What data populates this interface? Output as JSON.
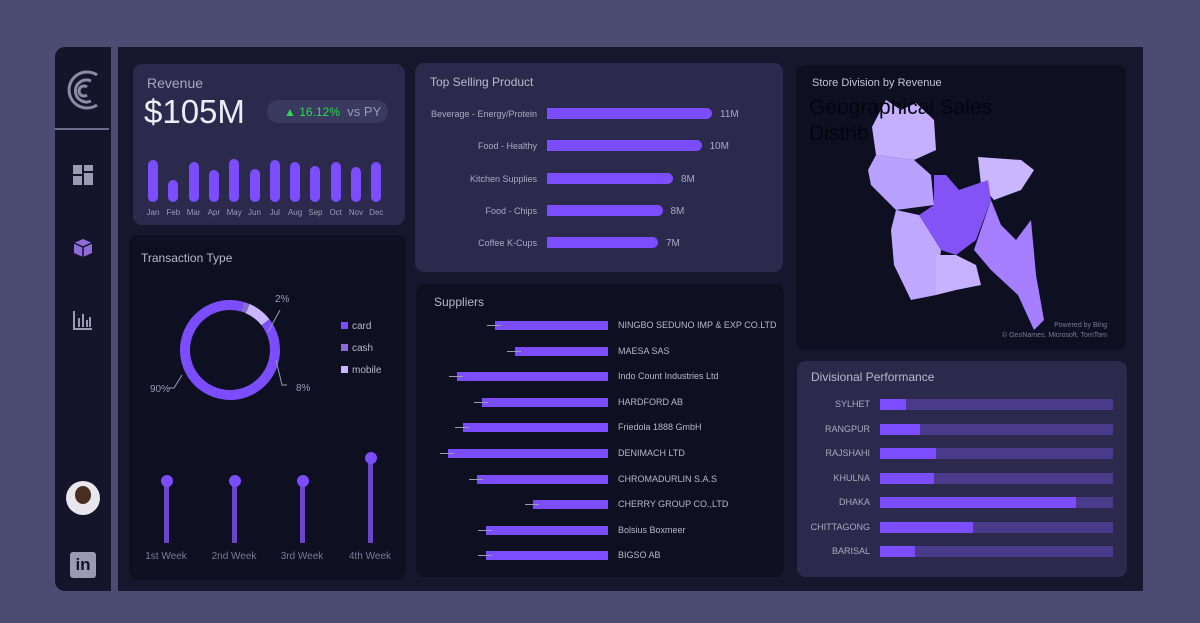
{
  "colors": {
    "accent": "#7c4dff",
    "positive": "#2bd94a",
    "card": "#7c4dff",
    "cash": "#8a6ad6",
    "mobile": "#c9b6ff"
  },
  "sidebar": {
    "items": [
      {
        "icon": "logo-icon"
      },
      {
        "icon": "dashboard-grid-icon"
      },
      {
        "icon": "box-icon"
      },
      {
        "icon": "bar-chart-icon"
      },
      {
        "icon": "avatar"
      },
      {
        "icon": "linkedin-icon"
      }
    ],
    "linkedin_text": "in"
  },
  "revenue": {
    "title": "Revenue",
    "value": "$105M",
    "change": "16.12%",
    "vs": "vs PY",
    "months": [
      "Jan",
      "Feb",
      "Mar",
      "Apr",
      "May",
      "Jun",
      "Jul",
      "Aug",
      "Sep",
      "Oct",
      "Nov",
      "Dec"
    ],
    "values": [
      42,
      22,
      40,
      32,
      43,
      33,
      42,
      40,
      36,
      40,
      35,
      40
    ]
  },
  "top_selling": {
    "title": "Top  Selling Product",
    "items": [
      {
        "name": "Beverage - Energy/Protein",
        "value": 11,
        "label": "11M"
      },
      {
        "name": "Food - Healthy",
        "value": 10.3,
        "label": "10M"
      },
      {
        "name": "Kitchen Supplies",
        "value": 8.4,
        "label": "8M"
      },
      {
        "name": "Food - Chips",
        "value": 7.7,
        "label": "8M"
      },
      {
        "name": "Coffee K-Cups",
        "value": 7.4,
        "label": "7M"
      }
    ]
  },
  "transaction": {
    "title": "Transaction Type",
    "slices": [
      {
        "name": "card",
        "pct": 90,
        "label": "90%"
      },
      {
        "name": "cash",
        "pct": 2,
        "label": "2%"
      },
      {
        "name": "mobile",
        "pct": 8,
        "label": "8%"
      }
    ],
    "weeks": [
      {
        "label": "1st Week",
        "value": 62
      },
      {
        "label": "2nd Week",
        "value": 62
      },
      {
        "label": "3rd Week",
        "value": 62
      },
      {
        "label": "4th Week",
        "value": 85
      }
    ]
  },
  "suppliers": {
    "title": "Suppliers",
    "items": [
      {
        "name": "NINGBO SEDUNO IMP & EXP CO.LTD",
        "value": 113
      },
      {
        "name": "MAESA SAS",
        "value": 93
      },
      {
        "name": "Indo Count Industries Ltd",
        "value": 151
      },
      {
        "name": "HARDFORD AB",
        "value": 126
      },
      {
        "name": "Friedola 1888 GmbH",
        "value": 145
      },
      {
        "name": "DENIMACH LTD",
        "value": 160
      },
      {
        "name": "CHROMADURLIN S.A.S",
        "value": 131
      },
      {
        "name": "CHERRY GROUP CO.,LTD",
        "value": 75
      },
      {
        "name": "Bolsius Boxmeer",
        "value": 122
      },
      {
        "name": "BIGSO AB",
        "value": 122
      }
    ]
  },
  "map": {
    "title": "Store Division by  Revenue",
    "bg_title": "Geographical Sales Distrib",
    "credit1": "Powered by Bing",
    "credit2": "© GeoNames, Microsoft, TomTom"
  },
  "divisional": {
    "title": "Divisional Performance",
    "items": [
      {
        "name": "SYLHET",
        "value": 0.11
      },
      {
        "name": "RANGPUR",
        "value": 0.17
      },
      {
        "name": "RAJSHAHI",
        "value": 0.24
      },
      {
        "name": "KHULNA",
        "value": 0.23
      },
      {
        "name": "DHAKA",
        "value": 0.84
      },
      {
        "name": "CHITTAGONG",
        "value": 0.4
      },
      {
        "name": "BARISAL",
        "value": 0.15
      }
    ]
  }
}
